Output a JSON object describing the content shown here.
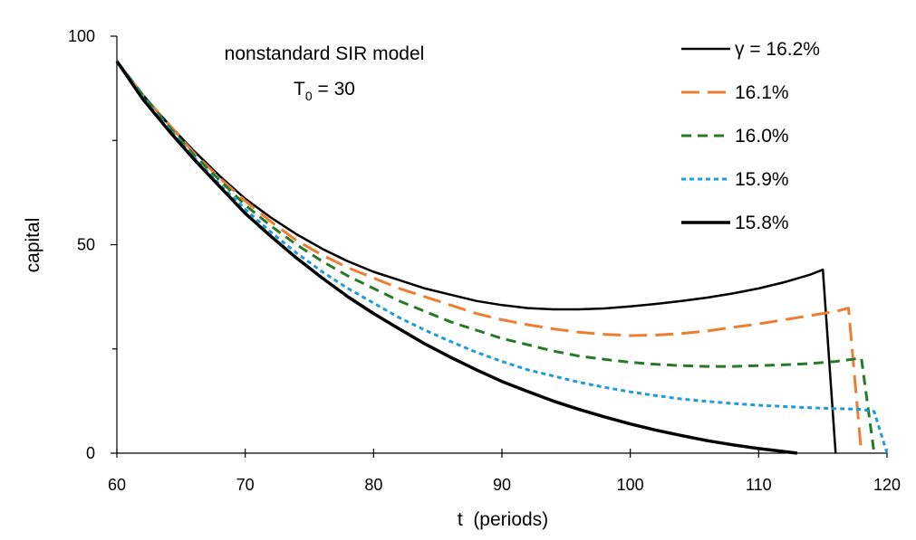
{
  "chart_data": {
    "type": "line",
    "title": "",
    "annotation_line1": "nonstandard SIR model",
    "annotation_line2_prefix": "T",
    "annotation_line2_sub": "0",
    "annotation_line2_suffix": " = 30",
    "xlabel": "t  (periods)",
    "ylabel": "capital",
    "xlim": [
      60,
      120
    ],
    "ylim": [
      0,
      100
    ],
    "xticks": [
      60,
      70,
      80,
      90,
      100,
      110,
      120
    ],
    "yticks_labeled": [
      0,
      50,
      100
    ],
    "yticks_minor": [
      25,
      75
    ],
    "legend_position": "top-right",
    "series": [
      {
        "name": "γ = 16.2%",
        "color": "#000000",
        "style": "solid-thin",
        "points": [
          [
            60,
            94
          ],
          [
            62,
            86
          ],
          [
            64,
            79
          ],
          [
            66,
            72.5
          ],
          [
            68,
            66.5
          ],
          [
            70,
            61
          ],
          [
            72,
            56.5
          ],
          [
            74,
            52.5
          ],
          [
            76,
            49
          ],
          [
            78,
            46
          ],
          [
            80,
            43.5
          ],
          [
            82,
            41.5
          ],
          [
            84,
            39.5
          ],
          [
            86,
            38
          ],
          [
            88,
            36.5
          ],
          [
            90,
            35.5
          ],
          [
            92,
            34.8
          ],
          [
            94,
            34.5
          ],
          [
            96,
            34.5
          ],
          [
            98,
            34.7
          ],
          [
            100,
            35.2
          ],
          [
            102,
            35.8
          ],
          [
            104,
            36.5
          ],
          [
            106,
            37.3
          ],
          [
            108,
            38.3
          ],
          [
            110,
            39.5
          ],
          [
            112,
            41
          ],
          [
            114,
            42.8
          ],
          [
            115,
            44
          ],
          [
            116,
            0
          ]
        ]
      },
      {
        "name": "16.1%",
        "color": "#ED7D31",
        "style": "long-dash",
        "points": [
          [
            60,
            94
          ],
          [
            62,
            86
          ],
          [
            64,
            79
          ],
          [
            66,
            72
          ],
          [
            68,
            66
          ],
          [
            70,
            60.5
          ],
          [
            72,
            55.5
          ],
          [
            74,
            51
          ],
          [
            76,
            47.5
          ],
          [
            78,
            44.5
          ],
          [
            80,
            42
          ],
          [
            82,
            39.5
          ],
          [
            84,
            37.5
          ],
          [
            86,
            35.5
          ],
          [
            88,
            33.5
          ],
          [
            90,
            32
          ],
          [
            92,
            30.8
          ],
          [
            94,
            29.8
          ],
          [
            96,
            29
          ],
          [
            98,
            28.5
          ],
          [
            100,
            28.2
          ],
          [
            102,
            28.3
          ],
          [
            104,
            28.7
          ],
          [
            106,
            29.3
          ],
          [
            108,
            30.2
          ],
          [
            110,
            31
          ],
          [
            112,
            32
          ],
          [
            114,
            33
          ],
          [
            116,
            34
          ],
          [
            117,
            34.8
          ],
          [
            118,
            0
          ]
        ]
      },
      {
        "name": "16.0%",
        "color": "#267A26",
        "style": "dash",
        "points": [
          [
            60,
            94
          ],
          [
            62,
            86
          ],
          [
            64,
            78.5
          ],
          [
            66,
            71.5
          ],
          [
            68,
            65.5
          ],
          [
            70,
            59.5
          ],
          [
            72,
            54.5
          ],
          [
            74,
            50
          ],
          [
            76,
            46
          ],
          [
            78,
            42.5
          ],
          [
            80,
            39.5
          ],
          [
            82,
            36.5
          ],
          [
            84,
            34
          ],
          [
            86,
            31.5
          ],
          [
            88,
            29.5
          ],
          [
            90,
            27.5
          ],
          [
            92,
            26
          ],
          [
            94,
            24.5
          ],
          [
            96,
            23.3
          ],
          [
            98,
            22.5
          ],
          [
            100,
            21.8
          ],
          [
            102,
            21.3
          ],
          [
            104,
            21
          ],
          [
            106,
            20.8
          ],
          [
            108,
            20.8
          ],
          [
            110,
            21
          ],
          [
            112,
            21.2
          ],
          [
            114,
            21.5
          ],
          [
            116,
            22
          ],
          [
            118,
            22.8
          ],
          [
            119,
            0
          ]
        ]
      },
      {
        "name": "15.9%",
        "color": "#1E9CD7",
        "style": "short-dash",
        "points": [
          [
            60,
            94
          ],
          [
            62,
            85.5
          ],
          [
            64,
            78
          ],
          [
            66,
            71
          ],
          [
            68,
            64.5
          ],
          [
            70,
            58.5
          ],
          [
            72,
            53
          ],
          [
            74,
            48
          ],
          [
            76,
            43.5
          ],
          [
            78,
            39.5
          ],
          [
            80,
            36
          ],
          [
            82,
            32.5
          ],
          [
            84,
            29.5
          ],
          [
            86,
            26.8
          ],
          [
            88,
            24.2
          ],
          [
            90,
            22
          ],
          [
            92,
            20
          ],
          [
            94,
            18.5
          ],
          [
            96,
            17
          ],
          [
            98,
            15.8
          ],
          [
            100,
            14.7
          ],
          [
            102,
            13.8
          ],
          [
            104,
            13
          ],
          [
            106,
            12.4
          ],
          [
            108,
            11.9
          ],
          [
            110,
            11.5
          ],
          [
            112,
            11.2
          ],
          [
            114,
            10.9
          ],
          [
            116,
            10.7
          ],
          [
            118,
            10.5
          ],
          [
            119,
            10
          ],
          [
            120,
            0
          ]
        ]
      },
      {
        "name": "15.8%",
        "color": "#000000",
        "style": "solid-thick",
        "points": [
          [
            60,
            94
          ],
          [
            62,
            85
          ],
          [
            64,
            77.5
          ],
          [
            66,
            70.5
          ],
          [
            68,
            64
          ],
          [
            70,
            57.5
          ],
          [
            72,
            52
          ],
          [
            74,
            46.8
          ],
          [
            76,
            42
          ],
          [
            78,
            37.5
          ],
          [
            80,
            33.5
          ],
          [
            82,
            29.8
          ],
          [
            84,
            26.2
          ],
          [
            86,
            23
          ],
          [
            88,
            20
          ],
          [
            90,
            17.2
          ],
          [
            92,
            14.8
          ],
          [
            94,
            12.5
          ],
          [
            96,
            10.5
          ],
          [
            98,
            8.7
          ],
          [
            100,
            7
          ],
          [
            102,
            5.5
          ],
          [
            104,
            4.2
          ],
          [
            106,
            3
          ],
          [
            108,
            2
          ],
          [
            110,
            1.1
          ],
          [
            112,
            0.4
          ],
          [
            113,
            0
          ]
        ]
      }
    ]
  }
}
